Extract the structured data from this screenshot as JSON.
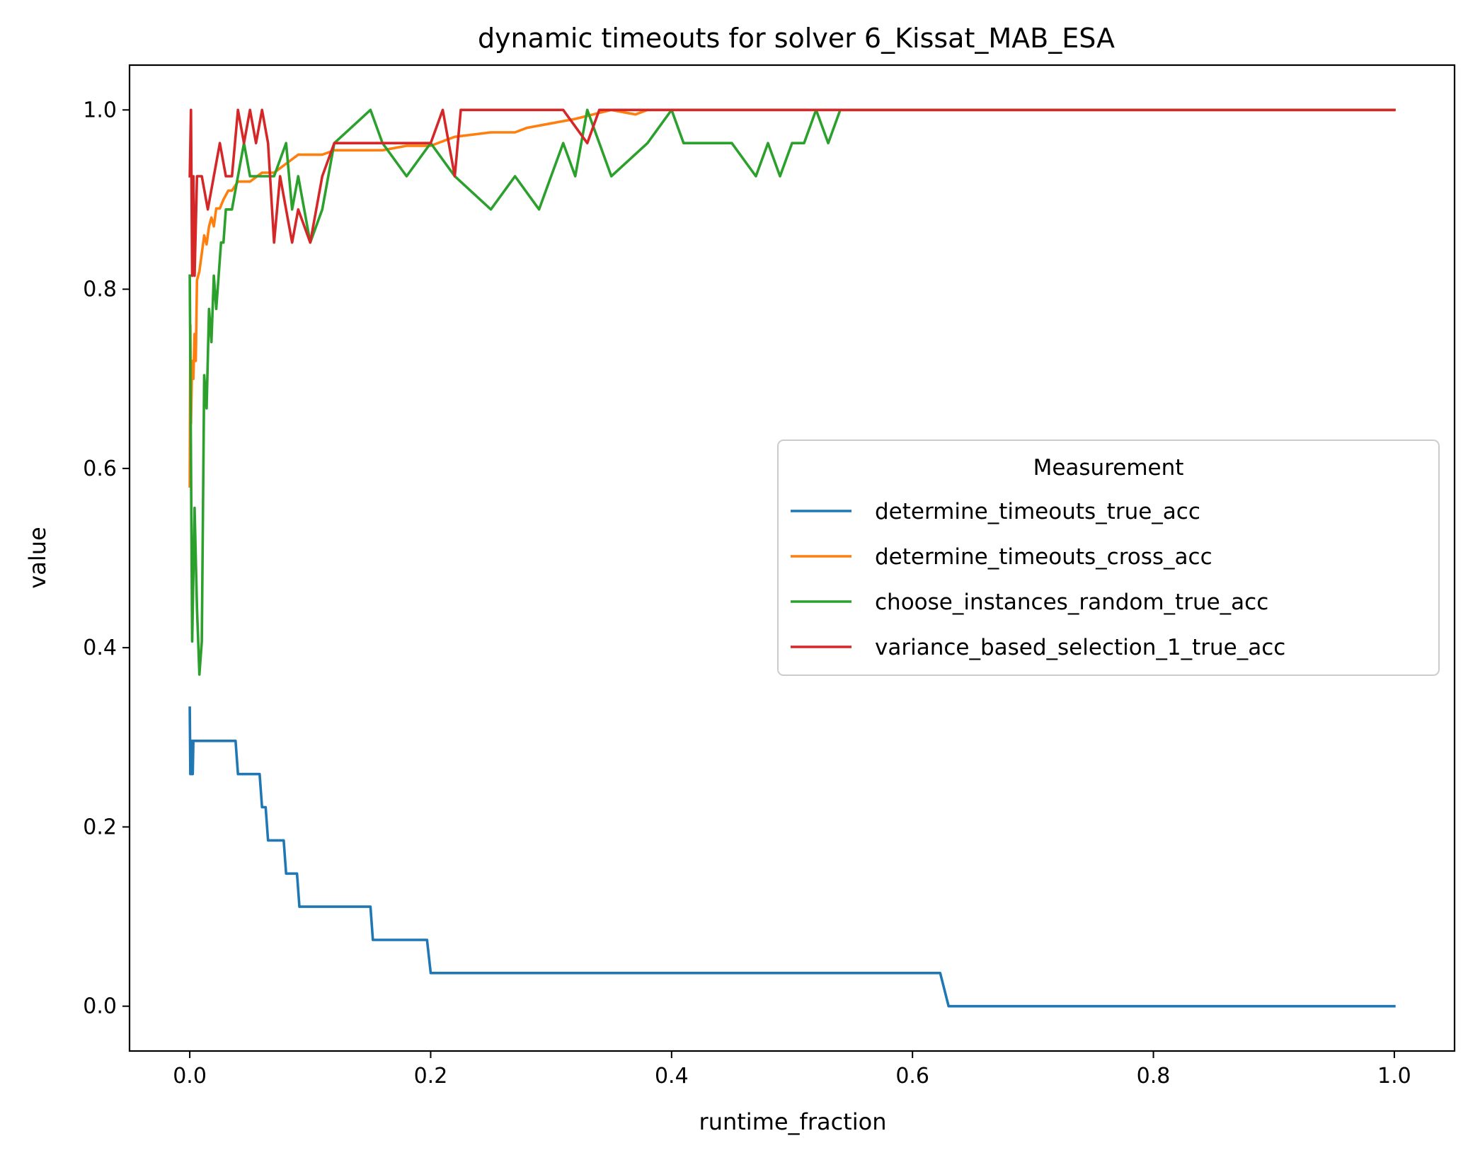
{
  "chart_data": {
    "type": "line",
    "title": "dynamic timeouts for solver 6_Kissat_MAB_ESA",
    "xlabel": "runtime_fraction",
    "ylabel": "value",
    "xlim": [
      -0.05,
      1.05
    ],
    "ylim": [
      -0.05,
      1.05
    ],
    "xticks": [
      "0.0",
      "0.2",
      "0.4",
      "0.6",
      "0.8",
      "1.0"
    ],
    "yticks": [
      "0.0",
      "0.2",
      "0.4",
      "0.6",
      "0.8",
      "1.0"
    ],
    "grid": false,
    "legend_title": "Measurement",
    "legend_placement": "center-right",
    "series": [
      {
        "name": "determine_timeouts_true_acc",
        "color": "#1f77b4",
        "x": [
          0,
          0.0005,
          0.001,
          0.0015,
          0.002,
          0.0025,
          0.003,
          0.0035,
          0.004,
          0.038,
          0.04,
          0.058,
          0.06,
          0.063,
          0.065,
          0.078,
          0.08,
          0.089,
          0.091,
          0.15,
          0.152,
          0.197,
          0.2,
          0.623,
          0.63,
          1.0
        ],
        "y": [
          0.333,
          0.259,
          0.296,
          0.259,
          0.296,
          0.259,
          0.296,
          0.296,
          0.296,
          0.296,
          0.259,
          0.259,
          0.222,
          0.222,
          0.185,
          0.185,
          0.148,
          0.148,
          0.111,
          0.111,
          0.074,
          0.074,
          0.037,
          0.037,
          0.0,
          0.0
        ]
      },
      {
        "name": "determine_timeouts_cross_acc",
        "color": "#ff7f0e",
        "x": [
          0,
          0.0005,
          0.001,
          0.002,
          0.003,
          0.004,
          0.005,
          0.006,
          0.008,
          0.01,
          0.012,
          0.014,
          0.016,
          0.018,
          0.02,
          0.022,
          0.025,
          0.028,
          0.032,
          0.035,
          0.04,
          0.045,
          0.05,
          0.06,
          0.07,
          0.08,
          0.09,
          0.1,
          0.11,
          0.12,
          0.15,
          0.16,
          0.18,
          0.2,
          0.22,
          0.25,
          0.27,
          0.28,
          0.3,
          0.32,
          0.35,
          0.37,
          0.38,
          0.4,
          0.41,
          1.0
        ],
        "y": [
          0.58,
          0.76,
          0.65,
          0.72,
          0.7,
          0.75,
          0.72,
          0.81,
          0.82,
          0.84,
          0.86,
          0.85,
          0.87,
          0.88,
          0.87,
          0.89,
          0.89,
          0.9,
          0.91,
          0.91,
          0.92,
          0.92,
          0.92,
          0.93,
          0.93,
          0.94,
          0.95,
          0.95,
          0.95,
          0.955,
          0.955,
          0.955,
          0.96,
          0.96,
          0.97,
          0.975,
          0.975,
          0.98,
          0.985,
          0.99,
          1.0,
          0.995,
          1.0,
          1.0,
          1.0,
          1.0
        ]
      },
      {
        "name": "choose_instances_random_true_acc",
        "color": "#2ca02c",
        "x": [
          0,
          0.002,
          0.004,
          0.006,
          0.008,
          0.01,
          0.012,
          0.014,
          0.016,
          0.018,
          0.02,
          0.022,
          0.024,
          0.026,
          0.028,
          0.03,
          0.035,
          0.04,
          0.045,
          0.05,
          0.06,
          0.07,
          0.08,
          0.085,
          0.09,
          0.1,
          0.11,
          0.12,
          0.15,
          0.16,
          0.18,
          0.2,
          0.22,
          0.25,
          0.27,
          0.29,
          0.3,
          0.31,
          0.32,
          0.33,
          0.35,
          0.38,
          0.4,
          0.41,
          0.45,
          0.47,
          0.48,
          0.49,
          0.5,
          0.51,
          0.52,
          0.53,
          0.54,
          0.55,
          1.0
        ],
        "y": [
          0.815,
          0.407,
          0.556,
          0.444,
          0.37,
          0.407,
          0.704,
          0.667,
          0.778,
          0.741,
          0.815,
          0.778,
          0.815,
          0.852,
          0.852,
          0.889,
          0.889,
          0.926,
          0.963,
          0.926,
          0.926,
          0.926,
          0.963,
          0.889,
          0.926,
          0.852,
          0.889,
          0.963,
          1.0,
          0.963,
          0.926,
          0.963,
          0.926,
          0.889,
          0.926,
          0.889,
          0.926,
          0.963,
          0.926,
          1.0,
          0.926,
          0.963,
          1.0,
          0.963,
          0.963,
          0.926,
          0.963,
          0.926,
          0.963,
          0.963,
          1.0,
          0.963,
          1.0,
          1.0,
          1.0
        ]
      },
      {
        "name": "variance_based_selection_1_true_acc",
        "color": "#d62728",
        "x": [
          0,
          0.001,
          0.002,
          0.003,
          0.004,
          0.006,
          0.008,
          0.01,
          0.015,
          0.02,
          0.025,
          0.03,
          0.035,
          0.04,
          0.045,
          0.05,
          0.055,
          0.06,
          0.065,
          0.07,
          0.075,
          0.08,
          0.085,
          0.09,
          0.1,
          0.11,
          0.12,
          0.15,
          0.17,
          0.2,
          0.21,
          0.22,
          0.225,
          0.23,
          0.24,
          0.31,
          0.33,
          0.34,
          0.35,
          0.37,
          1.0
        ],
        "y": [
          0.926,
          1.0,
          0.815,
          0.926,
          0.815,
          0.926,
          0.926,
          0.926,
          0.889,
          0.926,
          0.963,
          0.926,
          0.926,
          1.0,
          0.963,
          1.0,
          0.963,
          1.0,
          0.963,
          0.852,
          0.926,
          0.889,
          0.852,
          0.889,
          0.852,
          0.926,
          0.963,
          0.963,
          0.963,
          0.963,
          1.0,
          0.926,
          1.0,
          1.0,
          1.0,
          1.0,
          0.963,
          1.0,
          1.0,
          1.0,
          1.0
        ]
      }
    ]
  }
}
